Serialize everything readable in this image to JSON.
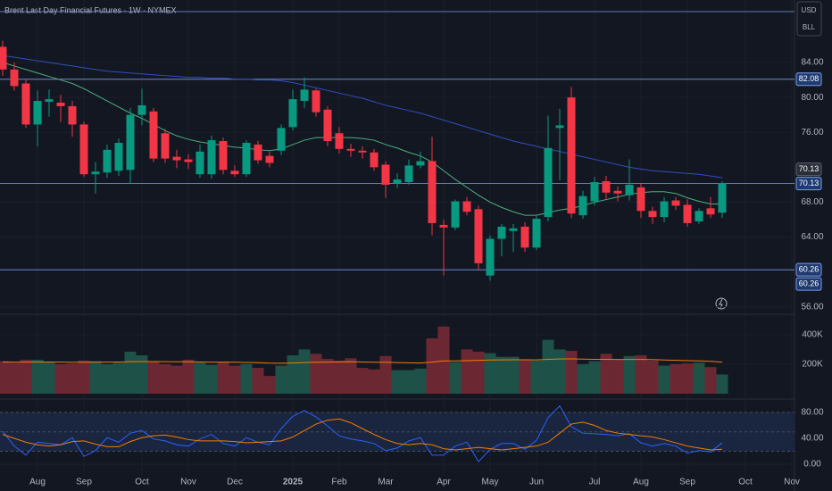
{
  "chart_data": [
    {
      "type": "candlestick",
      "title": "Brent Last Day Financial Futures · 1W · NYMEX",
      "currency": "USD",
      "unit": "BLL",
      "categories": [
        null,
        null,
        null,
        "Aug",
        null,
        null,
        null,
        "Sep",
        null,
        null,
        null,
        null,
        "Oct",
        null,
        null,
        null,
        "Nov",
        null,
        null,
        null,
        "Dec",
        null,
        null,
        null,
        null,
        "2025",
        null,
        null,
        null,
        "Feb",
        null,
        null,
        null,
        "Mar",
        null,
        null,
        null,
        null,
        "Apr",
        null,
        null,
        null,
        "May",
        null,
        null,
        null,
        "Jun",
        null,
        null,
        null,
        null,
        "Jul",
        null,
        null,
        null,
        "Aug",
        null,
        null,
        null,
        "Sep",
        null,
        null,
        null,
        null,
        "Oct",
        null,
        null,
        null,
        "Nov"
      ],
      "open": [
        85.8,
        83.2,
        81.6,
        76.9,
        79.5,
        79.4,
        79.0,
        76.9,
        71.2,
        71.4,
        71.6,
        71.7,
        78.0,
        78.4,
        75.9,
        73.2,
        72.9,
        71.2,
        71.2,
        75.0,
        71.6,
        71.2,
        74.6,
        73.3,
        73.9,
        76.6,
        79.6,
        80.8,
        78.6,
        75.9,
        74.1,
        73.9,
        73.7,
        72.3,
        70.1,
        70.3,
        72.2,
        72.7,
        65.4,
        65.1,
        68.1,
        67.2,
        59.6,
        63.8,
        64.7,
        65.2,
        62.8,
        66.3,
        76.5,
        80.0,
        66.5,
        68.1,
        70.4,
        69.3,
        68.8,
        69.7,
        67.0,
        66.3,
        68.2,
        67.7,
        65.8,
        67.3,
        66.8,
        null,
        null,
        null,
        null,
        null,
        null
      ],
      "high": [
        86.5,
        84.0,
        82.0,
        80.8,
        80.9,
        80.3,
        79.6,
        77.2,
        72.6,
        74.6,
        75.3,
        78.8,
        81.0,
        78.8,
        76.4,
        74.0,
        73.5,
        74.6,
        75.6,
        75.4,
        72.2,
        75.1,
        75.0,
        73.8,
        76.9,
        80.9,
        82.3,
        81.0,
        79.0,
        76.6,
        74.7,
        74.4,
        74.1,
        72.7,
        71.3,
        72.9,
        73.8,
        75.5,
        66.0,
        68.3,
        68.6,
        67.6,
        64.2,
        65.5,
        65.5,
        65.7,
        66.5,
        77.9,
        78.7,
        81.2,
        69.3,
        70.9,
        71.0,
        69.8,
        72.9,
        70.2,
        67.5,
        68.6,
        68.6,
        68.3,
        67.3,
        68.6,
        70.4,
        null,
        null,
        null,
        null,
        null,
        null
      ],
      "low": [
        82.5,
        80.8,
        76.5,
        74.4,
        77.8,
        77.2,
        75.5,
        70.9,
        69.0,
        70.8,
        71.0,
        70.1,
        76.8,
        72.6,
        72.5,
        71.9,
        71.8,
        70.8,
        70.7,
        71.2,
        70.9,
        70.9,
        72.4,
        72.0,
        73.4,
        76.2,
        78.8,
        77.8,
        74.4,
        73.6,
        73.2,
        73.0,
        71.6,
        68.5,
        69.6,
        70.0,
        71.9,
        64.2,
        59.6,
        64.8,
        66.5,
        60.3,
        59.0,
        61.8,
        62.3,
        62.3,
        62.5,
        65.8,
        70.5,
        66.2,
        66.1,
        67.6,
        68.4,
        68.1,
        68.2,
        66.2,
        65.5,
        65.7,
        67.1,
        65.2,
        65.5,
        66.2,
        66.2,
        null,
        null,
        null,
        null,
        null,
        null
      ],
      "close": [
        83.2,
        81.3,
        76.9,
        79.6,
        79.8,
        79.0,
        76.9,
        71.2,
        71.5,
        74.0,
        74.8,
        78.0,
        79.1,
        73.0,
        73.0,
        72.8,
        72.6,
        73.8,
        75.1,
        71.7,
        71.2,
        74.8,
        72.8,
        72.5,
        76.5,
        79.8,
        80.9,
        78.3,
        75.0,
        74.1,
        73.9,
        73.7,
        72.0,
        70.0,
        70.6,
        72.2,
        72.7,
        65.6,
        65.1,
        68.1,
        66.9,
        61.0,
        63.8,
        65.2,
        65.0,
        62.8,
        66.1,
        74.2,
        76.8,
        66.7,
        68.7,
        70.3,
        69.1,
        69.0,
        70.0,
        67.0,
        66.3,
        68.1,
        67.6,
        65.6,
        67.0,
        66.6,
        70.13,
        null,
        null,
        null,
        null,
        null,
        null
      ],
      "up_color": "#089981",
      "down_color": "#f23645",
      "series": [
        {
          "color": "#4caf7d",
          "values": [
            84.0,
            83.6,
            83.2,
            82.8,
            82.4,
            82.0,
            81.6,
            81.0,
            80.3,
            79.6,
            78.9,
            78.2,
            77.6,
            76.9,
            76.2,
            75.6,
            75.2,
            74.9,
            74.7,
            74.5,
            74.3,
            74.2,
            74.0,
            73.9,
            74.1,
            74.6,
            75.1,
            75.4,
            75.4,
            75.4,
            75.4,
            75.3,
            75.1,
            74.6,
            74.2,
            73.7,
            73.3,
            72.6,
            71.6,
            70.6,
            69.7,
            68.8,
            68.0,
            67.4,
            66.9,
            66.5,
            66.5,
            66.8,
            67.1,
            67.3,
            67.6,
            68.0,
            68.3,
            68.6,
            68.9,
            69.1,
            69.2,
            69.2,
            69.0,
            68.5,
            68.1,
            67.8,
            67.8,
            null,
            null,
            null,
            null,
            null,
            null
          ]
        },
        {
          "color": "#2f4fbf",
          "values": [
            84.8,
            84.6,
            84.4,
            84.2,
            84.0,
            83.8,
            83.6,
            83.4,
            83.2,
            83.0,
            82.9,
            82.8,
            82.7,
            82.6,
            82.5,
            82.4,
            82.3,
            82.3,
            82.2,
            82.2,
            82.1,
            82.1,
            82.0,
            82.0,
            81.9,
            81.7,
            81.4,
            81.1,
            80.8,
            80.5,
            80.2,
            79.9,
            79.5,
            79.1,
            78.8,
            78.5,
            78.2,
            77.8,
            77.4,
            77.0,
            76.6,
            76.2,
            75.8,
            75.4,
            75.0,
            74.7,
            74.4,
            74.1,
            73.8,
            73.5,
            73.2,
            72.9,
            72.6,
            72.3,
            72.0,
            71.8,
            71.6,
            71.5,
            71.4,
            71.3,
            71.2,
            71.0,
            70.8,
            null,
            null,
            null,
            null,
            null,
            null
          ]
        }
      ],
      "ylim": [
        55.37,
        91.16
      ],
      "yticks": [
        {
          "value": 56,
          "label": "56.00"
        },
        {
          "value": 64,
          "label": "64.00"
        },
        {
          "value": 68,
          "label": "68.00"
        },
        {
          "value": 76,
          "label": "76.00"
        },
        {
          "value": 80,
          "label": "80.00"
        },
        {
          "value": 84,
          "label": "84.00"
        }
      ],
      "levels": [
        82.08,
        70.13,
        60.26
      ],
      "level_color": "#7b9de8",
      "top_line": 89.83
    },
    {
      "type": "bar",
      "values": [
        220000,
        210000,
        230000,
        230000,
        215000,
        200000,
        205000,
        225000,
        220000,
        200000,
        210000,
        285000,
        260000,
        215000,
        200000,
        190000,
        230000,
        210000,
        195000,
        215000,
        190000,
        200000,
        175000,
        120000,
        190000,
        260000,
        300000,
        270000,
        235000,
        225000,
        240000,
        175000,
        165000,
        255000,
        160000,
        160000,
        170000,
        375000,
        455000,
        215000,
        300000,
        285000,
        275000,
        250000,
        250000,
        230000,
        225000,
        365000,
        300000,
        290000,
        200000,
        220000,
        270000,
        230000,
        255000,
        260000,
        225000,
        190000,
        200000,
        205000,
        210000,
        180000,
        130000,
        null,
        null,
        null,
        null,
        null,
        null
      ],
      "up_color": "#1e5147",
      "down_color": "#6b2833",
      "series": [
        {
          "color": "#f57c00",
          "values": [
            215000,
            214000,
            214000,
            215000,
            215000,
            214000,
            213000,
            213000,
            214000,
            214000,
            215000,
            217000,
            218000,
            218000,
            217000,
            216000,
            216000,
            215000,
            214000,
            214000,
            213000,
            212000,
            210000,
            207000,
            206000,
            208000,
            211000,
            213000,
            214000,
            215000,
            216000,
            215000,
            213000,
            213000,
            211000,
            209000,
            208000,
            214000,
            222000,
            222000,
            224000,
            226000,
            228000,
            229000,
            230000,
            230000,
            229000,
            233000,
            235000,
            236000,
            234000,
            233000,
            233000,
            232000,
            232000,
            232000,
            231000,
            228000,
            226000,
            224000,
            222000,
            219000,
            214000,
            null,
            null,
            null,
            null,
            null,
            null
          ]
        }
      ],
      "ylim": [
        0,
        520000
      ],
      "yticks": [
        {
          "value": 200000,
          "label": "200K"
        },
        {
          "value": 400000,
          "label": "400K"
        }
      ]
    },
    {
      "type": "line",
      "series": [
        {
          "color": "#2962ff",
          "values": [
            51,
            28,
            14,
            34,
            32,
            30,
            41,
            12,
            21,
            41,
            34,
            48,
            52,
            39,
            36,
            30,
            28,
            39,
            46,
            32,
            28,
            41,
            34,
            30,
            55,
            74,
            83,
            73,
            59,
            44,
            39,
            36,
            32,
            21,
            25,
            36,
            41,
            14,
            14,
            28,
            34,
            4,
            23,
            32,
            32,
            23,
            37,
            72,
            90,
            58,
            48,
            47,
            46,
            44,
            47,
            33,
            28,
            32,
            28,
            17,
            21,
            19,
            33,
            null,
            null,
            null,
            null,
            null,
            null
          ]
        },
        {
          "color": "#f57c00",
          "values": [
            46,
            40,
            34,
            30,
            28,
            30,
            35,
            36,
            31,
            27,
            27,
            35,
            41,
            44,
            45,
            42,
            38,
            36,
            36,
            36,
            35,
            33,
            34,
            35,
            36,
            42,
            52,
            62,
            68,
            70,
            64,
            55,
            46,
            38,
            32,
            30,
            32,
            30,
            24,
            22,
            24,
            26,
            24,
            22,
            24,
            26,
            28,
            34,
            48,
            62,
            65,
            60,
            52,
            48,
            46,
            44,
            42,
            38,
            33,
            28,
            25,
            22,
            23,
            null,
            null,
            null,
            null,
            null,
            null
          ]
        }
      ],
      "bands": [
        80,
        50,
        20
      ],
      "ylim": [
        -16.6,
        93.8
      ],
      "yticks": [
        {
          "value": 0,
          "label": "0.00"
        },
        {
          "value": 40,
          "label": "40.00"
        },
        {
          "value": 80,
          "label": "80.00"
        }
      ]
    }
  ]
}
